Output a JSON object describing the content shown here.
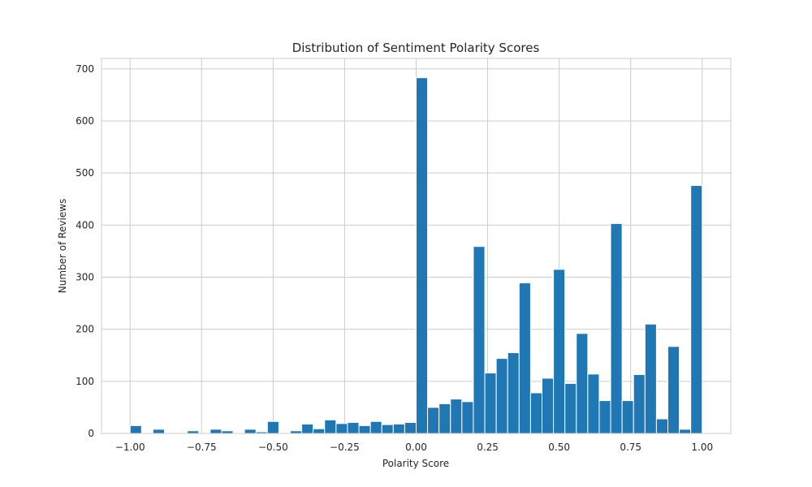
{
  "chart_data": {
    "type": "bar",
    "title": "Distribution of Sentiment Polarity Scores",
    "xlabel": "Polarity Score",
    "ylabel": "Number of Reviews",
    "xlim": [
      -1.1,
      1.1
    ],
    "ylim": [
      0,
      720
    ],
    "grid": true,
    "x_ticks": [
      -1.0,
      -0.75,
      -0.5,
      -0.25,
      0.0,
      0.25,
      0.5,
      0.75,
      1.0
    ],
    "x_tick_labels": [
      "−1.00",
      "−0.75",
      "−0.50",
      "−0.25",
      "0.00",
      "0.25",
      "0.50",
      "0.75",
      "1.00"
    ],
    "y_ticks": [
      0,
      100,
      200,
      300,
      400,
      500,
      600,
      700
    ],
    "y_tick_labels": [
      "0",
      "100",
      "200",
      "300",
      "400",
      "500",
      "600",
      "700"
    ],
    "bin_range": [
      -1.0,
      1.0
    ],
    "counts": [
      15,
      0,
      8,
      0,
      0,
      5,
      0,
      8,
      5,
      0,
      8,
      3,
      23,
      0,
      5,
      18,
      9,
      26,
      19,
      21,
      15,
      23,
      17,
      18,
      21,
      683,
      50,
      57,
      66,
      61,
      359,
      116,
      144,
      155,
      289,
      78,
      106,
      315,
      96,
      192,
      114,
      63,
      403,
      63,
      113,
      210,
      28,
      167,
      8,
      476
    ],
    "bar_color": "#1f77b4"
  }
}
